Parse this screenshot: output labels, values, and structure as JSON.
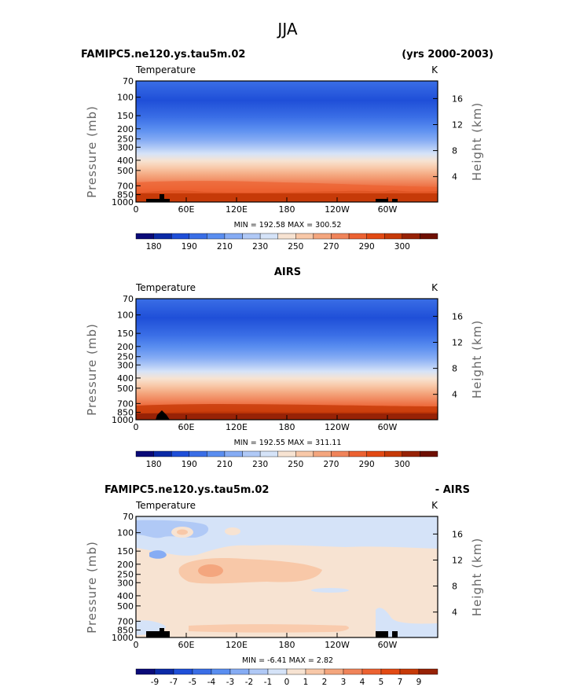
{
  "title": "JJA",
  "chart_data": [
    {
      "type": "heatmap",
      "name": "model",
      "left_title": "FAMIPC5.ne120.ys.tau5m.02",
      "right_title": "(yrs 2000-2003)",
      "variable_label": "Temperature",
      "units_label": "K",
      "ylabel": "Pressure  (mb)",
      "y2label": "Height  (km)",
      "pressure_ticks": [
        "70",
        "100",
        "150",
        "200",
        "250",
        "300",
        "400",
        "500",
        "700",
        "850",
        "1000"
      ],
      "height_ticks": [
        "4",
        "8",
        "12",
        "16"
      ],
      "x_ticks": [
        "0",
        "60E",
        "120E",
        "180",
        "120W",
        "60W"
      ],
      "min": "192.58",
      "max": "300.52",
      "min_max_text": "MIN =  192.58   MAX =  300.52",
      "colorbar_labels": [
        "180",
        "190",
        "210",
        "230",
        "250",
        "270",
        "290",
        "300"
      ],
      "colorbar_colors": [
        "#0a0a78",
        "#0b2aa6",
        "#1f4fd8",
        "#3a6ee6",
        "#5a8ef0",
        "#86acf4",
        "#b0c9f6",
        "#d5e3f8",
        "#f7e3d2",
        "#f8c8a8",
        "#f4a67e",
        "#f0845a",
        "#ec6232",
        "#e24a14",
        "#c63a08",
        "#972206",
        "#6e0f02"
      ],
      "profile_k": [
        [
          70,
          205
        ],
        [
          100,
          208
        ],
        [
          150,
          212
        ],
        [
          200,
          220
        ],
        [
          250,
          230
        ],
        [
          300,
          240
        ],
        [
          400,
          252
        ],
        [
          500,
          262
        ],
        [
          700,
          280
        ],
        [
          850,
          290
        ],
        [
          1000,
          300
        ]
      ]
    },
    {
      "type": "heatmap",
      "name": "obs",
      "center_title": "AIRS",
      "variable_label": "Temperature",
      "units_label": "K",
      "ylabel": "Pressure  (mb)",
      "y2label": "Height  (km)",
      "pressure_ticks": [
        "70",
        "100",
        "150",
        "200",
        "250",
        "300",
        "400",
        "500",
        "700",
        "850",
        "1000"
      ],
      "height_ticks": [
        "4",
        "8",
        "12",
        "16"
      ],
      "x_ticks": [
        "0",
        "60E",
        "120E",
        "180",
        "120W",
        "60W"
      ],
      "min": "192.55",
      "max": "311.11",
      "min_max_text": "MIN =  192.55   MAX =  311.11",
      "colorbar_labels": [
        "180",
        "190",
        "210",
        "230",
        "250",
        "270",
        "290",
        "300"
      ],
      "colorbar_colors": [
        "#0a0a78",
        "#0b2aa6",
        "#1f4fd8",
        "#3a6ee6",
        "#5a8ef0",
        "#86acf4",
        "#b0c9f6",
        "#d5e3f8",
        "#f7e3d2",
        "#f8c8a8",
        "#f4a67e",
        "#f0845a",
        "#ec6232",
        "#e24a14",
        "#c63a08",
        "#972206",
        "#6e0f02"
      ],
      "profile_k": [
        [
          70,
          206
        ],
        [
          100,
          207
        ],
        [
          150,
          211
        ],
        [
          200,
          219
        ],
        [
          250,
          229
        ],
        [
          300,
          239
        ],
        [
          400,
          251
        ],
        [
          500,
          262
        ],
        [
          700,
          281
        ],
        [
          850,
          292
        ],
        [
          1000,
          305
        ]
      ]
    },
    {
      "type": "heatmap",
      "name": "difference",
      "left_title": "FAMIPC5.ne120.ys.tau5m.02",
      "right_title": "- AIRS",
      "variable_label": "Temperature",
      "units_label": "K",
      "ylabel": "Pressure  (mb)",
      "y2label": "Height  (km)",
      "pressure_ticks": [
        "70",
        "100",
        "150",
        "200",
        "250",
        "300",
        "400",
        "500",
        "700",
        "850",
        "1000"
      ],
      "height_ticks": [
        "4",
        "8",
        "12",
        "16"
      ],
      "x_ticks": [
        "0",
        "60E",
        "120E",
        "180",
        "120W",
        "60W"
      ],
      "min": "-6.41",
      "max": "2.82",
      "min_max_text": "MIN =   -6.41   MAX =     2.82",
      "colorbar_labels": [
        "-9",
        "-7",
        "-5",
        "-4",
        "-3",
        "-2",
        "-1",
        "0",
        "1",
        "2",
        "3",
        "4",
        "5",
        "7",
        "9"
      ],
      "colorbar_colors": [
        "#0a0a78",
        "#0b2aa6",
        "#1f4fd8",
        "#3a6ee6",
        "#5a8ef0",
        "#86acf4",
        "#b0c9f6",
        "#d5e3f8",
        "#f7e3d2",
        "#f8c8a8",
        "#f4a67e",
        "#f0845a",
        "#ec6232",
        "#e24a14",
        "#c63a08",
        "#972206"
      ]
    }
  ]
}
